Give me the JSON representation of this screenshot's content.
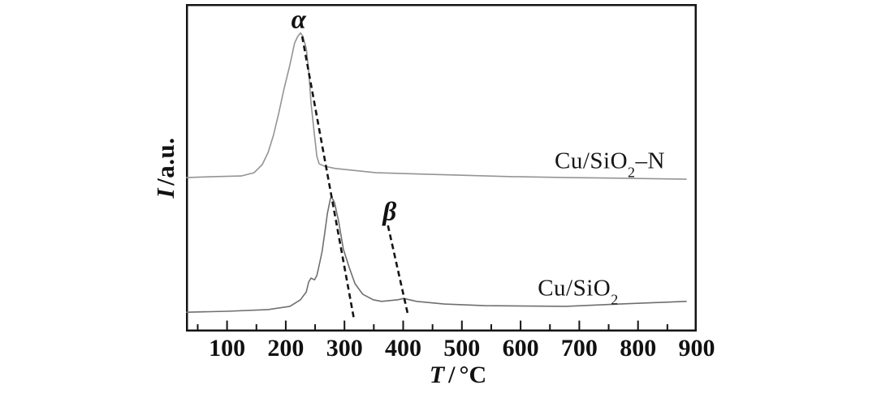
{
  "figure": {
    "background": "#ffffff",
    "frame_color": "#141414",
    "dash_color": "#141414"
  },
  "axes": {
    "x": {
      "symbol": "T",
      "sep": "/",
      "unit": "°C",
      "min": 30,
      "max": 900,
      "tick_start": 50,
      "tick_step": 50,
      "major_every": 100,
      "major_tick_len": 11,
      "minor_tick_len": 6.5,
      "tick_labels": [
        {
          "t": 100,
          "text": "100"
        },
        {
          "t": 200,
          "text": "200"
        },
        {
          "t": 300,
          "text": "300"
        },
        {
          "t": 400,
          "text": "400"
        },
        {
          "t": 500,
          "text": "500"
        },
        {
          "t": 600,
          "text": "600"
        },
        {
          "t": 700,
          "text": "700"
        },
        {
          "t": 800,
          "text": "800"
        },
        {
          "t": 900,
          "text": "900"
        }
      ]
    },
    "y": {
      "symbol": "I",
      "rest": "/a.u."
    }
  },
  "chart_data": {
    "type": "line",
    "title": "",
    "xlabel": "T / °C",
    "ylabel": "I / a.u.",
    "xlim": [
      30,
      900
    ],
    "ylim": [
      0,
      100
    ],
    "grid": false,
    "legend_position": "labels next to curves",
    "note": "H2-TPR style profiles; intensity in arbitrary units, curves vertically offset; v = % of plot height above bottom axis",
    "series": [
      {
        "id": "cu-sio2-n",
        "name": "Cu/SiO2-N",
        "color": "#949494",
        "label": {
          "pre": "Cu/SiO",
          "sub": "2",
          "post": "–N"
        },
        "label_pos": {
          "t": 752,
          "v": 52
        },
        "peaks_c": [
          225
        ],
        "points": [
          [
            31,
            47.0
          ],
          [
            77,
            47.3
          ],
          [
            124,
            47.5
          ],
          [
            146,
            48.5
          ],
          [
            160,
            51.0
          ],
          [
            170,
            54.7
          ],
          [
            179,
            59.9
          ],
          [
            188,
            66.6
          ],
          [
            197,
            74.0
          ],
          [
            207,
            81.4
          ],
          [
            215,
            88.1
          ],
          [
            220,
            90.0
          ],
          [
            225,
            91.2
          ],
          [
            229,
            90.2
          ],
          [
            235,
            86.4
          ],
          [
            239,
            79.7
          ],
          [
            243,
            69.8
          ],
          [
            249,
            59.9
          ],
          [
            253,
            53.5
          ],
          [
            257,
            51.2
          ],
          [
            266,
            50.5
          ],
          [
            284,
            49.8
          ],
          [
            354,
            48.5
          ],
          [
            446,
            48.0
          ],
          [
            585,
            47.3
          ],
          [
            681,
            47.0
          ],
          [
            778,
            46.8
          ],
          [
            882,
            46.5
          ]
        ]
      },
      {
        "id": "cu-sio2",
        "name": "Cu/SiO2",
        "color": "#6f6f6f",
        "label": {
          "pre": "Cu/SiO",
          "sub": "2",
          "post": ""
        },
        "label_pos": {
          "t": 698,
          "v": 13
        },
        "peaks_c": [
          243,
          277,
          400
        ],
        "points": [
          [
            31,
            5.9
          ],
          [
            101,
            6.2
          ],
          [
            170,
            6.7
          ],
          [
            207,
            7.7
          ],
          [
            225,
            9.7
          ],
          [
            235,
            12.1
          ],
          [
            239,
            15.1
          ],
          [
            243,
            16.3
          ],
          [
            249,
            15.8
          ],
          [
            253,
            17.1
          ],
          [
            257,
            20.3
          ],
          [
            262,
            24.5
          ],
          [
            266,
            29.5
          ],
          [
            271,
            36.1
          ],
          [
            276,
            40.6
          ],
          [
            278,
            41.1
          ],
          [
            283,
            39.4
          ],
          [
            290,
            33.7
          ],
          [
            298,
            25.2
          ],
          [
            308,
            19.6
          ],
          [
            318,
            14.6
          ],
          [
            331,
            11.4
          ],
          [
            349,
            9.7
          ],
          [
            363,
            9.2
          ],
          [
            391,
            9.7
          ],
          [
            401,
            10.1
          ],
          [
            423,
            9.2
          ],
          [
            470,
            8.4
          ],
          [
            539,
            7.9
          ],
          [
            677,
            7.7
          ],
          [
            768,
            8.4
          ],
          [
            882,
            9.2
          ]
        ]
      }
    ],
    "annotations": [
      {
        "id": "alpha",
        "label": "α",
        "t": 222,
        "v": 95
      },
      {
        "id": "beta",
        "label": "β",
        "t": 377,
        "v": 36.5
      }
    ],
    "guide_lines": [
      {
        "name": "alpha-guide-line",
        "from": [
          228,
          90.1
        ],
        "to": [
          316,
          4.0
        ]
      },
      {
        "name": "beta-guide-line",
        "from": [
          374,
          32.4
        ],
        "to": [
          408,
          5.2
        ]
      }
    ]
  }
}
